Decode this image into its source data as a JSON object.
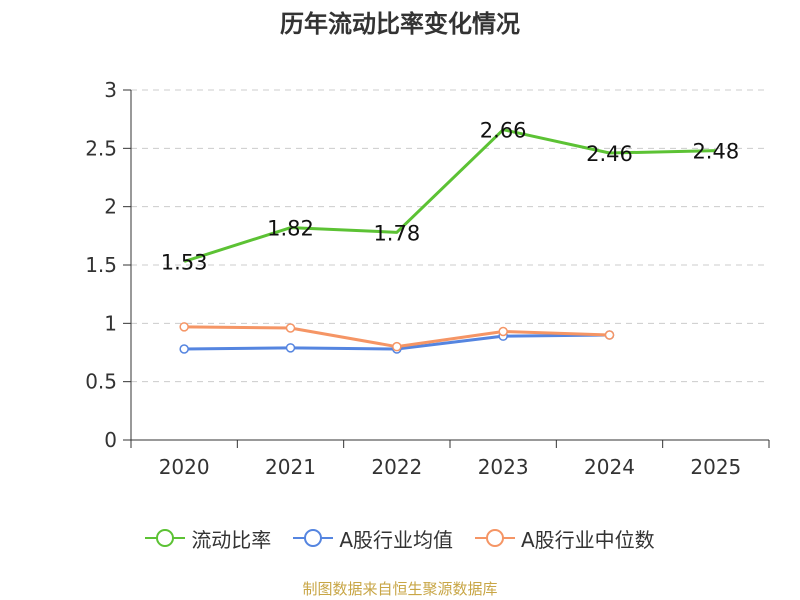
{
  "chart_data": {
    "type": "line",
    "title": "历年流动比率变化情况",
    "categories": [
      "2020",
      "2021",
      "2022",
      "2023",
      "2024",
      "2025"
    ],
    "y_ticks": [
      "0",
      "0.5",
      "1",
      "1.5",
      "2",
      "2.5",
      "3"
    ],
    "ylim": [
      0,
      3
    ],
    "grid": true,
    "legend_position": "bottom",
    "series": [
      {
        "name": "流动比率",
        "color": "#5cc234",
        "values": [
          1.53,
          1.82,
          1.78,
          2.66,
          2.46,
          2.48
        ],
        "labels": [
          "1.53",
          "1.82",
          "1.78",
          "2.66",
          "2.46",
          "2.48"
        ]
      },
      {
        "name": "A股行业均值",
        "color": "#5585e0",
        "values": [
          0.78,
          0.79,
          0.78,
          0.89,
          0.9,
          null
        ]
      },
      {
        "name": "A股行业中位数",
        "color": "#f59565",
        "values": [
          0.97,
          0.96,
          0.8,
          0.93,
          0.9,
          null
        ]
      }
    ]
  },
  "footer": "制图数据来自恒生聚源数据库"
}
